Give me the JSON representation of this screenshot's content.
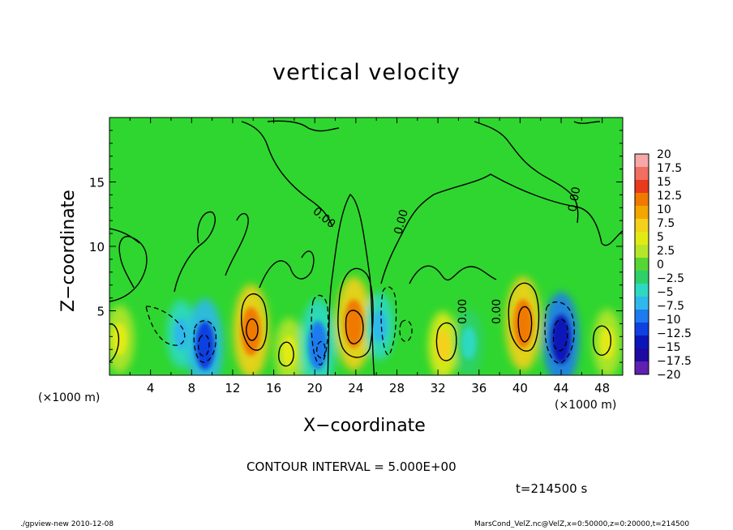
{
  "header": {
    "title": "vertical velocity"
  },
  "axes": {
    "xlabel": "X−coordinate",
    "ylabel": "Z−coordinate",
    "x_unit_left": "(×1000 m)",
    "x_unit_right": "(×1000 m)"
  },
  "annotations": {
    "contour_interval": "CONTOUR INTERVAL = 5.000E+00",
    "time": "t=214500 s",
    "footer_left": "./gpview-new  2010-12-08",
    "footer_right": "MarsCond_VelZ.nc@VelZ,x=0:50000,z=0:20000,t=214500",
    "contour_label": "0.00"
  },
  "colors": {
    "background_field": "#2fd62f",
    "contour_line": "#000000"
  },
  "chart_data": {
    "type": "heatmap",
    "title": "vertical velocity",
    "xlabel": "X-coordinate",
    "ylabel": "Z-coordinate",
    "x_unit": "(×1000 m)",
    "z_unit": "(×1000 m)",
    "xlim": [
      0,
      50
    ],
    "ylim": [
      0,
      20
    ],
    "xticks": [
      "4",
      "8",
      "12",
      "16",
      "20",
      "24",
      "28",
      "32",
      "36",
      "40",
      "44",
      "48"
    ],
    "yticks": [
      "5",
      "10",
      "15"
    ],
    "contour_interval": 5.0,
    "colorbar": {
      "levels": [
        "20",
        "17.5",
        "15",
        "12.5",
        "10",
        "7.5",
        "5",
        "2.5",
        "0",
        "−2.5",
        "−5",
        "−7.5",
        "−10",
        "−12.5",
        "−15",
        "−17.5",
        "−20"
      ],
      "colors": [
        "#f7a8a8",
        "#f06f60",
        "#e83a1c",
        "#f07a00",
        "#f3a600",
        "#f4d11a",
        "#e2ea16",
        "#b6e629",
        "#56d635",
        "#2fd06a",
        "#2ed9c2",
        "#2fb8ec",
        "#1d7bef",
        "#1040e0",
        "#0b16b8",
        "#1e0aa0",
        "#6020b0"
      ]
    },
    "features": [
      {
        "x": 1,
        "z": 2.8,
        "value": 5
      },
      {
        "x": 7,
        "z": 3.2,
        "value": -7.5
      },
      {
        "x": 9.3,
        "z": 2.3,
        "value": -12.5
      },
      {
        "x": 13.8,
        "z": 3.4,
        "value": 12.5
      },
      {
        "x": 17.5,
        "z": 1.8,
        "value": 5
      },
      {
        "x": 20.3,
        "z": 2.3,
        "value": -10
      },
      {
        "x": 23.8,
        "z": 4,
        "value": 12.5
      },
      {
        "x": 26.3,
        "z": 3.8,
        "value": -7.5
      },
      {
        "x": 32.5,
        "z": 2.3,
        "value": 7.5
      },
      {
        "x": 35,
        "z": 2.5,
        "value": -5
      },
      {
        "x": 40.3,
        "z": 4,
        "value": 12.5
      },
      {
        "x": 44,
        "z": 2.8,
        "value": -15
      },
      {
        "x": 48.5,
        "z": 2.5,
        "value": 5
      }
    ]
  }
}
